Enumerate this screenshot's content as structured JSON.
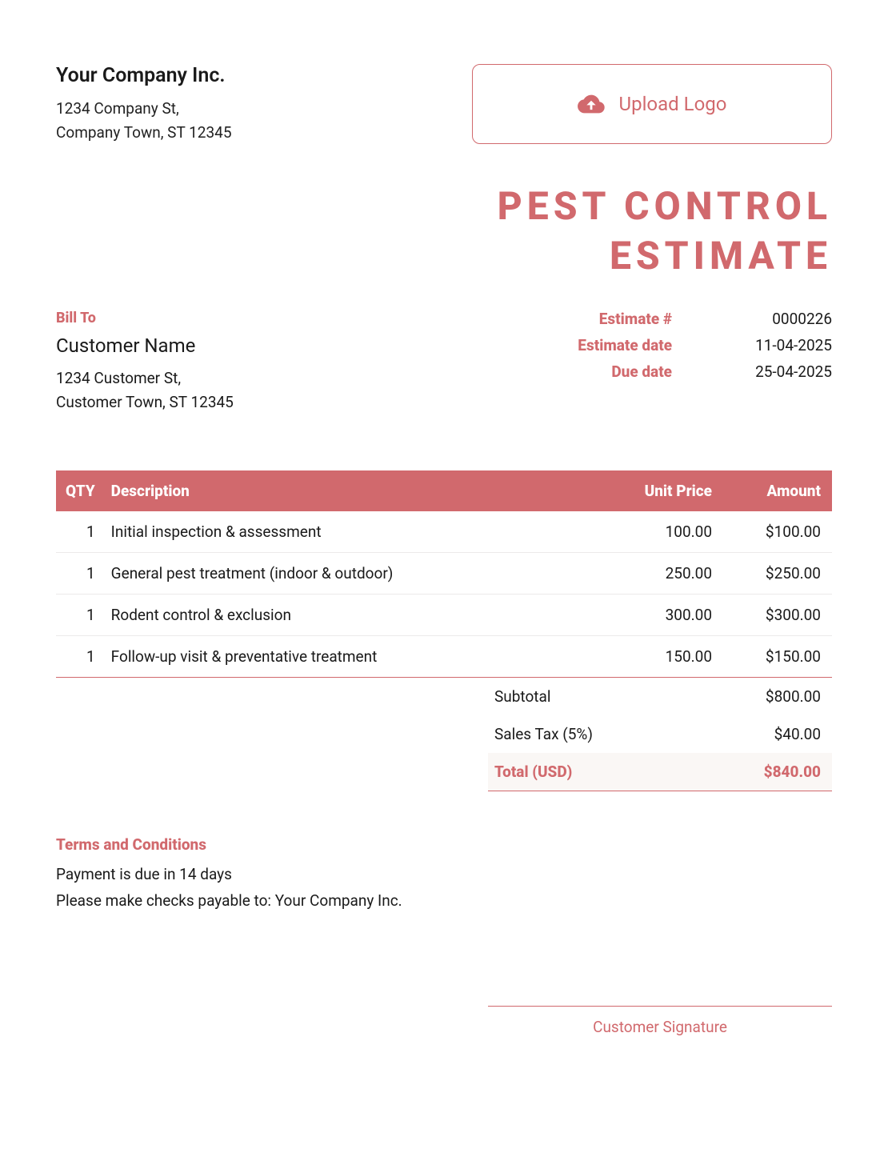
{
  "colors": {
    "accent": "#d1696d",
    "background": "#ffffff",
    "text": "#1a1a1a",
    "total_bg": "#faf7f5",
    "row_divider": "#eceaea"
  },
  "company": {
    "name": "Your Company Inc.",
    "address_line1": "1234 Company St,",
    "address_line2": "Company Town, ST 12345"
  },
  "upload": {
    "label": "Upload Logo"
  },
  "document": {
    "title_line1": "PEST CONTROL",
    "title_line2": "ESTIMATE"
  },
  "billto": {
    "label": "Bill To",
    "name": "Customer Name",
    "address_line1": "1234 Customer St,",
    "address_line2": "Customer Town, ST 12345"
  },
  "estimate_meta": {
    "number_label": "Estimate #",
    "number": "0000226",
    "date_label": "Estimate date",
    "date": "11-04-2025",
    "due_label": "Due date",
    "due": "25-04-2025"
  },
  "table": {
    "headers": {
      "qty": "QTY",
      "desc": "Description",
      "unit": "Unit Price",
      "amount": "Amount"
    },
    "rows": [
      {
        "qty": "1",
        "desc": "Initial inspection & assessment",
        "unit": "100.00",
        "amount": "$100.00"
      },
      {
        "qty": "1",
        "desc": "General pest treatment (indoor & outdoor)",
        "unit": "250.00",
        "amount": "$250.00"
      },
      {
        "qty": "1",
        "desc": "Rodent control & exclusion",
        "unit": "300.00",
        "amount": "$300.00"
      },
      {
        "qty": "1",
        "desc": "Follow-up visit & preventative treatment",
        "unit": "150.00",
        "amount": "$150.00"
      }
    ]
  },
  "totals": {
    "subtotal_label": "Subtotal",
    "subtotal": "$800.00",
    "tax_label": "Sales Tax (5%)",
    "tax": "$40.00",
    "total_label": "Total (USD)",
    "total": "$840.00"
  },
  "terms": {
    "title": "Terms and Conditions",
    "line1": "Payment is due in 14 days",
    "line2": "Please make checks payable to: Your Company Inc."
  },
  "signature": {
    "label": "Customer Signature"
  }
}
